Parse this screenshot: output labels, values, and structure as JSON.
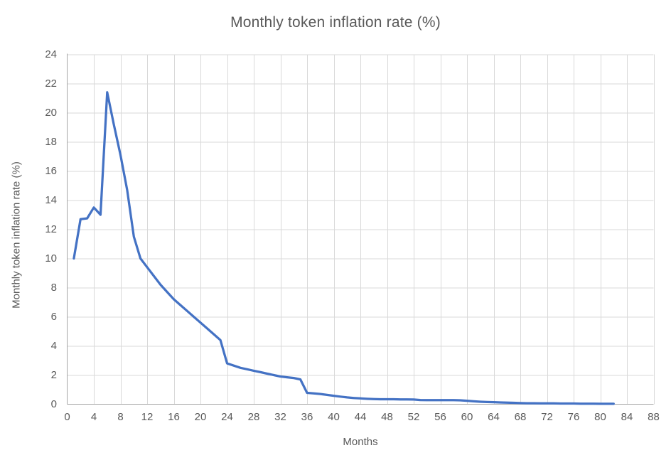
{
  "page": {
    "background": "#ffffff"
  },
  "chart_data": {
    "type": "line",
    "title": "Monthly token inflation rate (%)",
    "xlabel": "Months",
    "ylabel": "Monthly token inflation rate (%)",
    "xlim": [
      0,
      88
    ],
    "ylim": [
      0,
      24
    ],
    "x_ticks": [
      0,
      4,
      8,
      12,
      16,
      20,
      24,
      28,
      32,
      36,
      40,
      44,
      48,
      52,
      56,
      60,
      64,
      68,
      72,
      76,
      80,
      84,
      88
    ],
    "y_ticks": [
      0,
      2,
      4,
      6,
      8,
      10,
      12,
      14,
      16,
      18,
      20,
      22,
      24
    ],
    "grid": true,
    "legend_position": "none",
    "colors": {
      "line": "#4472C4",
      "gridline": "#D9D9D9",
      "axis_line": "#A6A6A6",
      "text": "#595959",
      "title_text": "#595959"
    },
    "series": [
      {
        "name": "Monthly token inflation rate (%)",
        "x": [
          1,
          2,
          3,
          4,
          5,
          6,
          7,
          8,
          9,
          10,
          11,
          12,
          13,
          14,
          15,
          16,
          17,
          18,
          19,
          20,
          21,
          22,
          23,
          24,
          25,
          26,
          27,
          28,
          29,
          30,
          31,
          32,
          33,
          34,
          35,
          36,
          37,
          38,
          39,
          40,
          41,
          42,
          43,
          44,
          45,
          46,
          47,
          48,
          49,
          50,
          51,
          52,
          53,
          54,
          55,
          56,
          57,
          58,
          59,
          60,
          61,
          62,
          63,
          64,
          65,
          66,
          67,
          68,
          69,
          70,
          71,
          72,
          73,
          74,
          75,
          76,
          77,
          78,
          79,
          80,
          81,
          82
        ],
        "values": [
          10.0,
          12.7,
          12.75,
          13.5,
          13.0,
          21.4,
          19.2,
          17.1,
          14.7,
          11.5,
          10.0,
          9.4,
          8.8,
          8.2,
          7.7,
          7.2,
          6.8,
          6.4,
          6.0,
          5.6,
          5.2,
          4.8,
          4.4,
          2.8,
          2.65,
          2.5,
          2.4,
          2.3,
          2.2,
          2.1,
          2.0,
          1.9,
          1.85,
          1.8,
          1.7,
          0.78,
          0.74,
          0.7,
          0.64,
          0.58,
          0.52,
          0.47,
          0.43,
          0.4,
          0.37,
          0.35,
          0.34,
          0.34,
          0.34,
          0.33,
          0.33,
          0.32,
          0.29,
          0.28,
          0.28,
          0.28,
          0.28,
          0.28,
          0.27,
          0.24,
          0.2,
          0.17,
          0.15,
          0.14,
          0.12,
          0.11,
          0.1,
          0.08,
          0.07,
          0.07,
          0.06,
          0.06,
          0.06,
          0.05,
          0.05,
          0.05,
          0.04,
          0.04,
          0.04,
          0.03,
          0.03,
          0.03
        ]
      }
    ]
  }
}
